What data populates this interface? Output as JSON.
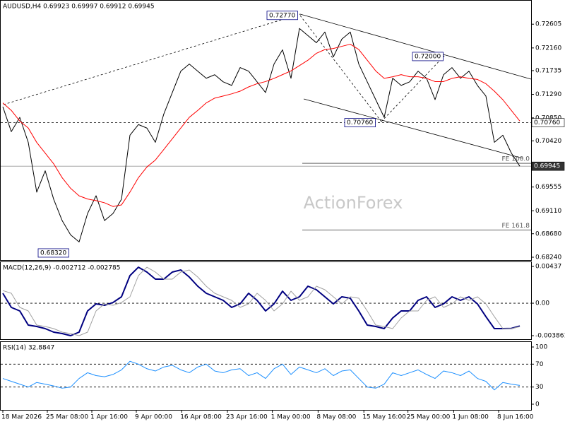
{
  "chart_data": [
    {
      "type": "line",
      "title": "AUDUSD,H4 0.69923 0.69997 0.69912 0.69945",
      "watermark": "ActionForex",
      "series": [
        {
          "color": "#000000",
          "values": [
            0.71058,
            0.70592,
            0.70859,
            0.70392,
            0.69459,
            0.69859,
            0.69326,
            0.68926,
            0.68659,
            0.68526,
            0.69059,
            0.69392,
            0.68926,
            0.69059,
            0.69326,
            0.70525,
            0.70725,
            0.70659,
            0.70392,
            0.70925,
            0.71325,
            0.71725,
            0.71858,
            0.71725,
            0.71592,
            0.71658,
            0.71525,
            0.71458,
            0.71792,
            0.71725,
            0.71525,
            0.71325,
            0.71858,
            0.72125,
            0.71592,
            0.72525,
            0.72391,
            0.72258,
            0.72458,
            0.71992,
            0.72325,
            0.72458,
            0.71858,
            0.71525,
            0.71192,
            0.70859,
            0.71592,
            0.71458,
            0.71525,
            0.71725,
            0.71592,
            0.71192,
            0.71658,
            0.71792,
            0.71592,
            0.71725,
            0.71458,
            0.71258,
            0.70392,
            0.70525,
            0.70192,
            0.69945
          ]
        },
        {
          "color": "#ff0000",
          "values": [
            0.7113,
            0.7099,
            0.7079,
            0.7066,
            0.7039,
            0.7019,
            0.6999,
            0.6973,
            0.6953,
            0.6939,
            0.6933,
            0.693,
            0.6926,
            0.6919,
            0.6922,
            0.6946,
            0.6973,
            0.6993,
            0.7006,
            0.7026,
            0.7046,
            0.7066,
            0.7086,
            0.7099,
            0.7113,
            0.7122,
            0.7126,
            0.713,
            0.7135,
            0.7143,
            0.7149,
            0.7153,
            0.7159,
            0.7166,
            0.7173,
            0.7183,
            0.7193,
            0.7206,
            0.7213,
            0.7215,
            0.7219,
            0.7223,
            0.7213,
            0.7193,
            0.7173,
            0.7159,
            0.7162,
            0.7166,
            0.7162,
            0.7162,
            0.7159,
            0.7153,
            0.7153,
            0.7159,
            0.7162,
            0.7159,
            0.7157,
            0.7149,
            0.7135,
            0.7119,
            0.7099,
            0.7079
          ]
        }
      ],
      "xlim": [
        0,
        61
      ],
      "ylim": [
        0.68187,
        0.73058
      ],
      "yticks": [
        0.72605,
        {
          "value": 0.7216,
          "label": "0.72160"
        },
        0.71735,
        {
          "value": 0.7129,
          "label": "0.71290"
        },
        {
          "value": 0.7085,
          "label": "0.70850"
        },
        {
          "value": 0.7042,
          "label": "0.70420"
        },
        0.69555,
        {
          "value": 0.6911,
          "label": "0.69110"
        },
        {
          "value": 0.6868,
          "label": "0.68680"
        },
        {
          "value": 0.6824,
          "label": "0.68240"
        }
      ],
      "levels": [
        {
          "value": 0.7076,
          "label": "0.70760",
          "style": "dashed"
        },
        {
          "value": 0.69945,
          "label": "0.69945",
          "style": "solid"
        }
      ],
      "fib_levels": [
        {
          "value": 0.7,
          "label": "FE 100.0"
        },
        {
          "value": 0.68752,
          "label": "FE 161.8"
        }
      ],
      "annotations": [
        {
          "value": 0.7277,
          "label": "0.72770"
        },
        {
          "value": 0.72,
          "label": "0.72000"
        },
        {
          "value": 0.7076,
          "label": "0.70760"
        },
        {
          "value": 0.6832,
          "label": "0.68320"
        }
      ]
    },
    {
      "type": "line",
      "title": "MACD(12,26,9) -0.002712 -0.002785",
      "series": [
        {
          "color": "#000080",
          "values": [
            0.00118,
            -0.0005,
            -0.00092,
            -0.0026,
            -0.00277,
            -0.00302,
            -0.00344,
            -0.00361,
            -0.00386,
            -0.00344,
            -0.00092,
            -8e-05,
            -0.00025,
            8e-05,
            0.00076,
            0.00328,
            0.00428,
            0.0037,
            0.00286,
            0.00286,
            0.0037,
            0.00395,
            0.00311,
            0.00202,
            0.00118,
            0.00076,
            0.00034,
            -0.0005,
            -8e-05,
            0.00118,
            0.00034,
            -0.00092,
            -8e-05,
            0.00143,
            0.00034,
            0.00076,
            0.00202,
            0.0016,
            0.00076,
            -8e-05,
            0.00076,
            0.00059,
            -0.00092,
            -0.0026,
            -0.00277,
            -0.00302,
            -0.00176,
            -0.00092,
            -0.00092,
            0.00034,
            0.00076,
            -0.0005,
            -8e-05,
            0.00076,
            0.00034,
            0.00076,
            -8e-05,
            -0.0016,
            -0.00302,
            -0.00302,
            -0.003,
            -0.00271
          ]
        },
        {
          "color": "#a0a0a0",
          "values": [
            0.0015,
            0.00118,
            -0.0005,
            -0.00092,
            -0.0026,
            -0.00277,
            -0.00302,
            -0.00344,
            -0.00361,
            -0.00386,
            -0.00344,
            -0.00092,
            -8e-05,
            -0.00025,
            8e-05,
            0.00076,
            0.00328,
            0.00428,
            0.0037,
            0.00286,
            0.00286,
            0.0037,
            0.00395,
            0.00311,
            0.00202,
            0.00118,
            0.00076,
            0.00034,
            -0.0005,
            -8e-05,
            0.00118,
            0.00034,
            -0.00092,
            -8e-05,
            0.00143,
            0.00034,
            0.00076,
            0.00202,
            0.0016,
            0.00076,
            -8e-05,
            0.00076,
            0.00059,
            -0.00092,
            -0.0026,
            -0.00277,
            -0.00302,
            -0.00176,
            -0.00092,
            -0.00092,
            0.00034,
            0.00076,
            -0.0005,
            -8e-05,
            0.00076,
            0.00034,
            0.00076,
            -8e-05,
            -0.0016,
            -0.00302,
            -0.00302,
            -0.00279
          ]
        }
      ],
      "xlim": [
        0,
        61
      ],
      "ylim": [
        -0.00428,
        0.00496
      ],
      "yticks": [
        0.00437,
        {
          "value": 0,
          "label": "0.00"
        },
        -0.003861
      ],
      "levels": [
        0
      ]
    },
    {
      "type": "line",
      "title": "RSI(14) 32.8847",
      "series": [
        {
          "color": "#1e90ff",
          "values": [
            45,
            40,
            35,
            30,
            38,
            35,
            32,
            28,
            30,
            45,
            55,
            50,
            48,
            52,
            60,
            75,
            70,
            62,
            58,
            65,
            68,
            60,
            55,
            65,
            70,
            58,
            55,
            60,
            62,
            50,
            55,
            45,
            62,
            70,
            52,
            65,
            60,
            55,
            62,
            50,
            58,
            60,
            45,
            30,
            28,
            35,
            55,
            50,
            55,
            60,
            52,
            45,
            58,
            55,
            50,
            58,
            45,
            40,
            25,
            38,
            35,
            32.8847
          ]
        }
      ],
      "xlim": [
        0,
        61
      ],
      "ylim": [
        -9.9,
        109.9
      ],
      "yticks": [
        100,
        70,
        30,
        0
      ],
      "levels": [
        70,
        30
      ],
      "xticks": [
        {
          "value": 0,
          "label": "18 Mar 2026"
        },
        {
          "value": 5.25,
          "label": "25 Mar 08:00"
        },
        {
          "value": 10.5,
          "label": "1 Apr 16:00"
        },
        {
          "value": 15.75,
          "label": "9 Apr 00:00"
        },
        {
          "value": 21.1,
          "label": "16 Apr 08:00"
        },
        {
          "value": 26.5,
          "label": "23 Apr 16:00"
        },
        {
          "value": 31.8,
          "label": "1 May 00:00"
        },
        {
          "value": 37.2,
          "label": "8 May 08:00"
        },
        {
          "value": 42.6,
          "label": "15 May 16:00"
        },
        {
          "value": 47.8,
          "label": "25 May 00:00"
        },
        {
          "value": 53.2,
          "label": "1 Jun 08:00"
        },
        {
          "value": 58.5,
          "label": "8 Jun 16:00"
        }
      ]
    }
  ]
}
